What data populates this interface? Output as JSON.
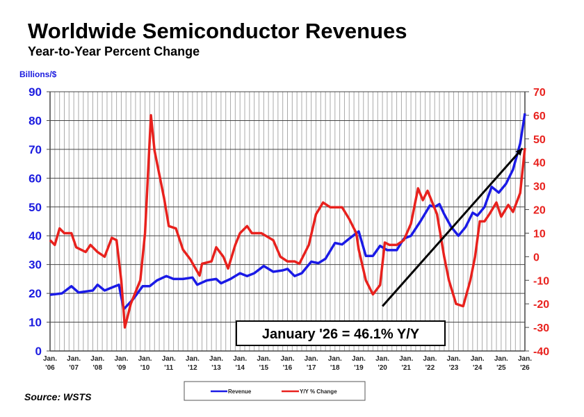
{
  "chart_data": {
    "type": "line",
    "title": "Worldwide Semiconductor Revenues",
    "subtitle": "Year-to-Year Percent Change",
    "ylabel_left": "Billions/$",
    "ylim_left": [
      0,
      90
    ],
    "yticks_left": [
      "0",
      "10",
      "20",
      "30",
      "40",
      "50",
      "60",
      "70",
      "80",
      "90"
    ],
    "ylim_right": [
      -40,
      70
    ],
    "yticks_right": [
      "-40",
      "-30",
      "-20",
      "-10",
      "0",
      "10",
      "20",
      "30",
      "40",
      "50",
      "60",
      "70"
    ],
    "xlim": [
      2006,
      2026
    ],
    "xticks": [
      [
        "Jan.",
        "'06"
      ],
      [
        "Jan.",
        "'07"
      ],
      [
        "Jan.",
        "'08"
      ],
      [
        "Jan.",
        "'09"
      ],
      [
        "Jan.",
        "'10"
      ],
      [
        "Jan.",
        "'11"
      ],
      [
        "Jan.",
        "'12"
      ],
      [
        "Jan.",
        "'13"
      ],
      [
        "Jan.",
        "'14"
      ],
      [
        "Jan.",
        "'15"
      ],
      [
        "Jan.",
        "'16"
      ],
      [
        "Jan.",
        "'17"
      ],
      [
        "Jan.",
        "'18"
      ],
      [
        "Jan.",
        "'19"
      ],
      [
        "Jan.",
        "'20"
      ],
      [
        "Jan.",
        "'21"
      ],
      [
        "Jan.",
        "'22"
      ],
      [
        "Jan.",
        "'23"
      ],
      [
        "Jan.",
        "'24"
      ],
      [
        "Jan.",
        "'25"
      ],
      [
        "Jan.",
        "'26"
      ]
    ],
    "grid": true,
    "legend_position": "bottom",
    "series": [
      {
        "name": "Revenue",
        "axis": "left",
        "color": "#1a1ae6",
        "x": [
          2006.0,
          2006.5,
          2006.9,
          2007.2,
          2007.8,
          2008.0,
          2008.3,
          2008.6,
          2008.9,
          2009.1,
          2009.5,
          2009.9,
          2010.2,
          2010.5,
          2010.9,
          2011.2,
          2011.6,
          2012.0,
          2012.2,
          2012.6,
          2013.0,
          2013.2,
          2013.6,
          2014.0,
          2014.3,
          2014.6,
          2015.0,
          2015.4,
          2015.8,
          2016.0,
          2016.3,
          2016.6,
          2017.0,
          2017.3,
          2017.6,
          2018.0,
          2018.3,
          2018.6,
          2019.0,
          2019.3,
          2019.6,
          2019.9,
          2020.2,
          2020.6,
          2020.9,
          2021.2,
          2021.6,
          2022.0,
          2022.2,
          2022.4,
          2022.6,
          2022.9,
          2023.2,
          2023.5,
          2023.8,
          2024.0,
          2024.3,
          2024.6,
          2024.9,
          2025.2,
          2025.5,
          2025.8,
          2026.0
        ],
        "y": [
          19.5,
          20,
          22.5,
          20.3,
          21,
          23,
          21,
          22,
          23,
          14.5,
          18,
          22.5,
          22.5,
          24.5,
          26,
          25,
          25,
          25.5,
          23,
          24.5,
          25,
          23.5,
          25,
          27,
          26,
          27,
          29.5,
          27.5,
          28,
          28.5,
          26,
          27,
          31,
          30.5,
          32,
          37.5,
          37,
          39,
          41.5,
          33,
          33,
          36.5,
          35,
          35,
          39,
          40,
          45,
          50.5,
          50,
          51,
          47.5,
          43,
          40,
          43,
          48,
          47,
          50,
          57,
          55,
          58,
          63,
          72,
          82.5
        ]
      },
      {
        "name": "Y/Y % Change",
        "axis": "right",
        "color": "#e8211d",
        "x": [
          2006.0,
          2006.2,
          2006.4,
          2006.6,
          2006.9,
          2007.1,
          2007.5,
          2007.7,
          2008.0,
          2008.3,
          2008.6,
          2008.8,
          2009.0,
          2009.15,
          2009.4,
          2009.8,
          2010.0,
          2010.25,
          2010.4,
          2010.8,
          2011.0,
          2011.3,
          2011.6,
          2011.9,
          2012.3,
          2012.4,
          2012.8,
          2013.0,
          2013.3,
          2013.5,
          2013.8,
          2014.0,
          2014.3,
          2014.5,
          2014.9,
          2015.4,
          2015.7,
          2016.0,
          2016.3,
          2016.5,
          2016.9,
          2017.2,
          2017.5,
          2017.8,
          2018.0,
          2018.3,
          2018.6,
          2018.9,
          2019.0,
          2019.3,
          2019.6,
          2019.9,
          2020.1,
          2020.3,
          2020.6,
          2020.9,
          2021.2,
          2021.5,
          2021.7,
          2021.9,
          2022.3,
          2022.6,
          2022.8,
          2023.1,
          2023.4,
          2023.7,
          2023.9,
          2024.1,
          2024.3,
          2024.5,
          2024.8,
          2025.0,
          2025.3,
          2025.5,
          2025.8,
          2026.0
        ],
        "y": [
          7,
          5,
          12,
          10,
          10,
          4,
          2,
          5,
          2,
          0,
          8,
          7,
          -10,
          -30,
          -20,
          -10,
          10,
          60,
          45,
          25,
          13,
          12,
          3,
          -1,
          -8,
          -3,
          -2,
          4,
          0,
          -5,
          5,
          10,
          13,
          10,
          10,
          7,
          0,
          -2,
          -2,
          -3,
          5,
          18,
          23,
          21,
          21,
          21,
          16,
          10,
          3,
          -10,
          -16,
          -12,
          6,
          5,
          5,
          7,
          14,
          29,
          24,
          28,
          18,
          0,
          -10,
          -20,
          -21,
          -10,
          0,
          15,
          15,
          18,
          23,
          17,
          22,
          19,
          27,
          46.1
        ]
      }
    ],
    "annotations": [
      {
        "text": "January '26 = 46.1% Y/Y"
      },
      {
        "type": "arrow",
        "axis": "right",
        "from": [
          2020.0,
          -21
        ],
        "to": [
          2025.9,
          46
        ]
      }
    ],
    "source": "Source: WSTS"
  }
}
